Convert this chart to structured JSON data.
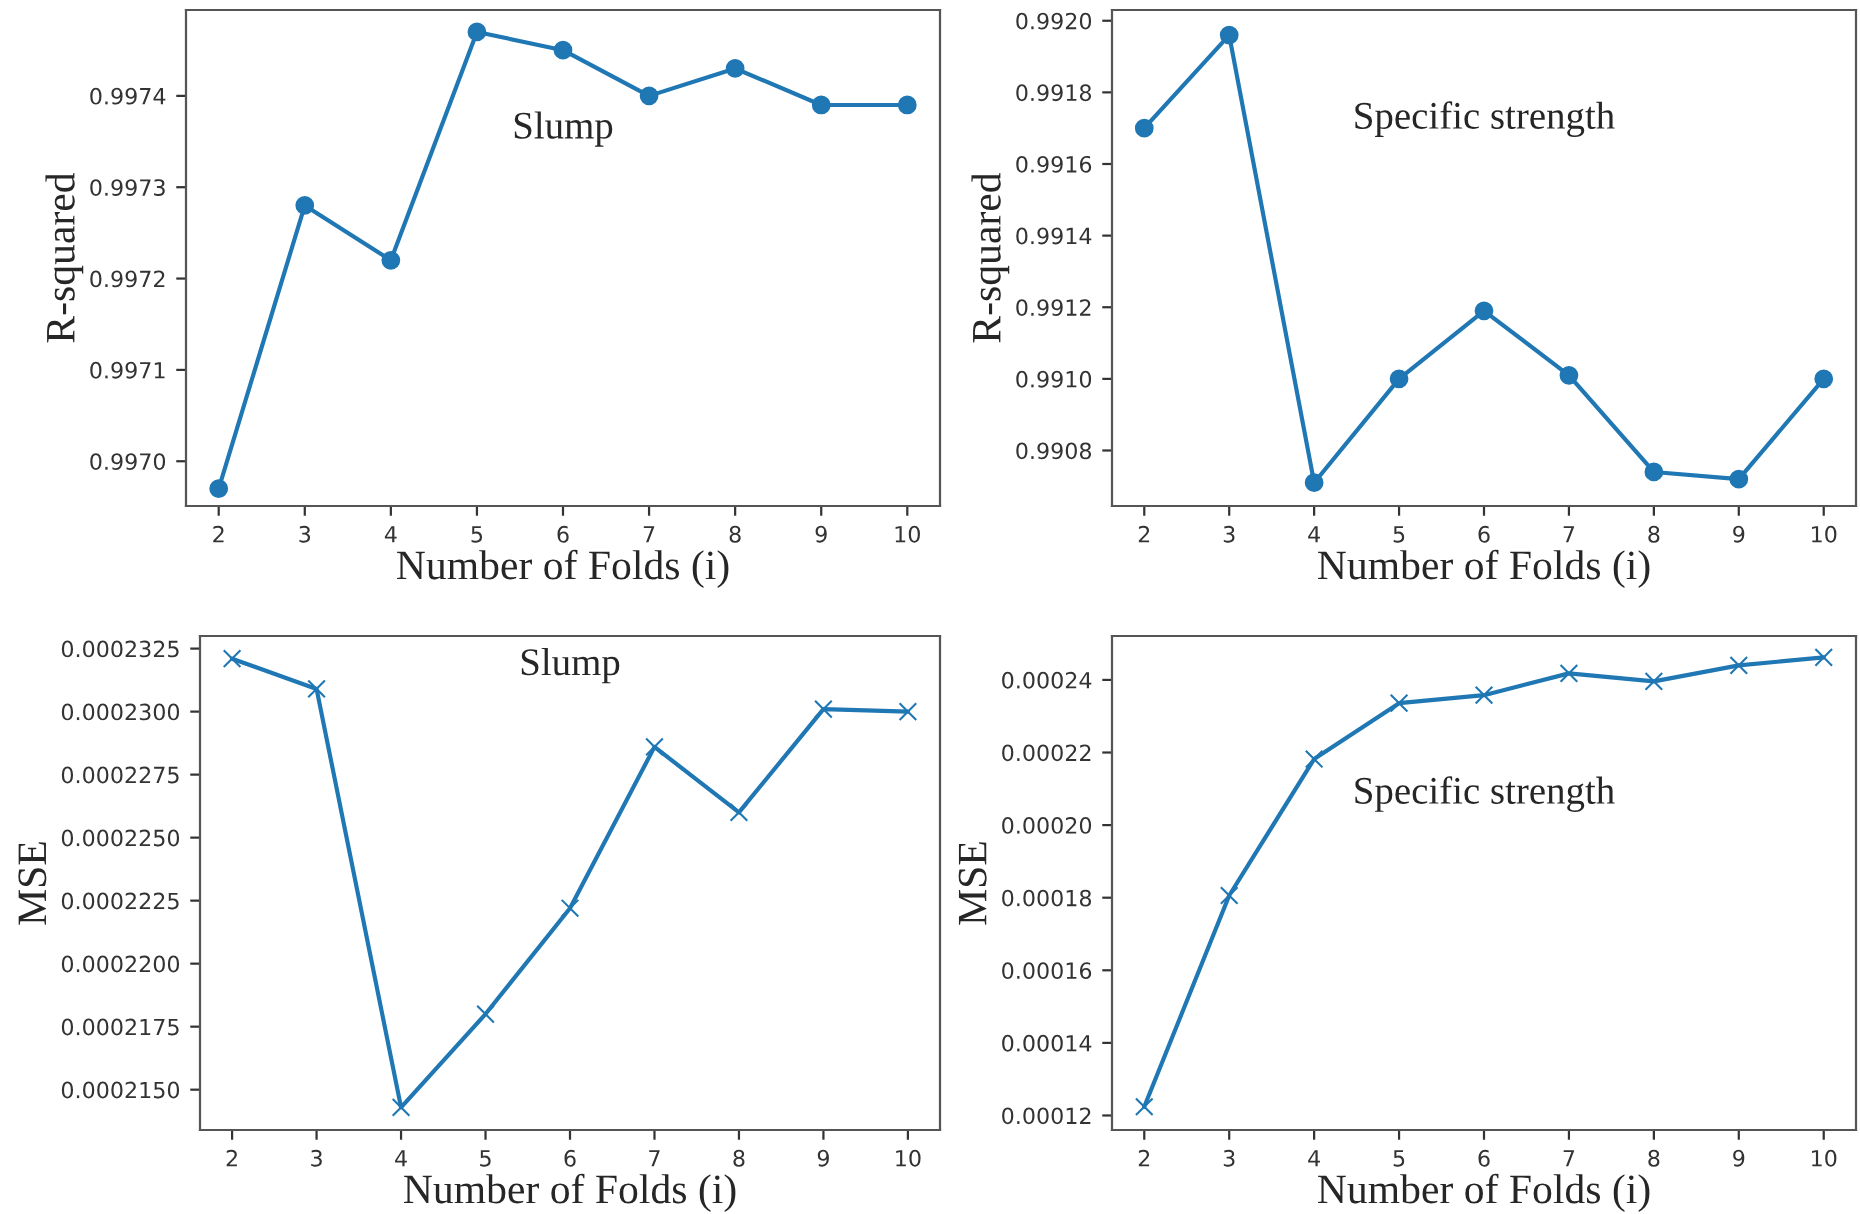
{
  "chart_data": [
    {
      "type": "line",
      "xlabel": "Number of Folds (i)",
      "ylabel": "R-squared",
      "annotations": [
        "Slump"
      ],
      "x": [
        2,
        3,
        4,
        5,
        6,
        7,
        8,
        9,
        10
      ],
      "marker": "circle",
      "line_style": "solid",
      "series": [
        {
          "color": "#1f77b4",
          "values": [
            0.99697,
            0.99728,
            0.99722,
            0.99747,
            0.99745,
            0.9974,
            0.99743,
            0.99739,
            0.99739
          ]
        }
      ],
      "xlim": [
        1.62,
        10.38
      ],
      "xticks": [
        2,
        3,
        4,
        5,
        6,
        7,
        8,
        9,
        10
      ],
      "ylim": [
        0.996951,
        0.997494
      ],
      "yticks": [
        {
          "value": 0.997,
          "label": "0.9970"
        },
        0.9971,
        0.9972,
        0.9973,
        0.9974
      ]
    },
    {
      "type": "line",
      "xlabel": "Number of Folds (i)",
      "ylabel": "R-squared",
      "annotations": [
        "Specific strength"
      ],
      "x": [
        2,
        3,
        4,
        5,
        6,
        7,
        8,
        9,
        10
      ],
      "marker": "circle",
      "line_style": "solid",
      "series": [
        {
          "color": "#1f77b4",
          "values": [
            0.9917,
            0.99196,
            0.99071,
            0.991,
            0.99119,
            0.99101,
            0.99074,
            0.99072,
            0.991
          ]
        }
      ],
      "xlim": [
        1.62,
        10.38
      ],
      "xticks": [
        2,
        3,
        4,
        5,
        6,
        7,
        8,
        9,
        10
      ],
      "ylim": [
        0.990645,
        0.99203
      ],
      "yticks": [
        0.9908,
        {
          "value": 0.991,
          "label": "0.9910"
        },
        0.9912,
        0.9914,
        0.9916,
        0.9918,
        {
          "value": 0.992,
          "label": "0.9920"
        }
      ]
    },
    {
      "type": "line",
      "xlabel": "Number of Folds (i)",
      "ylabel": "MSE",
      "annotations": [
        "Slump"
      ],
      "x": [
        2,
        3,
        4,
        5,
        6,
        7,
        8,
        9,
        10
      ],
      "marker": "cross",
      "line_style": "solid",
      "series": [
        {
          "color": "#1f77b4",
          "values": [
            0.0002321,
            0.0002309,
            0.0002143,
            0.000218,
            0.0002222,
            0.0002286,
            0.000226,
            0.0002301,
            0.00023
          ]
        }
      ],
      "xlim": [
        1.62,
        10.38
      ],
      "xticks": [
        2,
        3,
        4,
        5,
        6,
        7,
        8,
        9,
        10
      ],
      "ylim": [
        0.0002134,
        0.000233
      ],
      "yticks": [
        {
          "value": 0.000215,
          "label": "0.0002150"
        },
        0.0002175,
        {
          "value": 0.00022,
          "label": "0.0002200"
        },
        0.0002225,
        {
          "value": 0.000225,
          "label": "0.0002250"
        },
        0.0002275,
        {
          "value": 0.00023,
          "label": "0.0002300"
        },
        0.0002325
      ]
    },
    {
      "type": "line",
      "xlabel": "Number of Folds (i)",
      "ylabel": "MSE",
      "annotations": [
        "Specific strength"
      ],
      "x": [
        2,
        3,
        4,
        5,
        6,
        7,
        8,
        9,
        10
      ],
      "marker": "cross",
      "line_style": "solid",
      "series": [
        {
          "color": "#1f77b4",
          "values": [
            0.0001224,
            0.0001806,
            0.0002182,
            0.0002336,
            0.0002358,
            0.0002418,
            0.0002396,
            0.000244,
            0.0002462
          ]
        }
      ],
      "xlim": [
        1.62,
        10.38
      ],
      "xticks": [
        2,
        3,
        4,
        5,
        6,
        7,
        8,
        9,
        10
      ],
      "ylim": [
        0.000116,
        0.0002521
      ],
      "yticks": [
        {
          "value": 0.00012,
          "label": "0.00012"
        },
        {
          "value": 0.00014,
          "label": "0.00014"
        },
        {
          "value": 0.00016,
          "label": "0.00016"
        },
        {
          "value": 0.00018,
          "label": "0.00018"
        },
        {
          "value": 0.0002,
          "label": "0.00020"
        },
        {
          "value": 0.00022,
          "label": "0.00022"
        },
        {
          "value": 0.00024,
          "label": "0.00024"
        }
      ]
    }
  ]
}
